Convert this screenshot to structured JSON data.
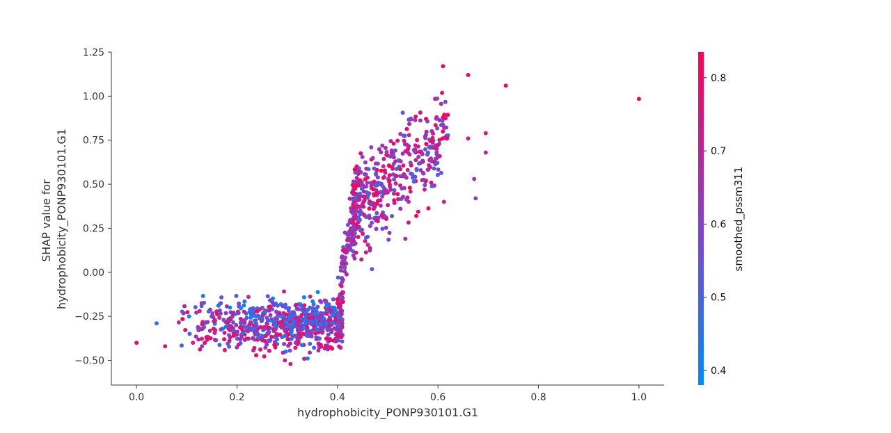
{
  "chart_data": {
    "type": "scatter",
    "title": "",
    "xlabel": "hydrophobicity_PONP930101.G1",
    "ylabel_lines": [
      "SHAP value for",
      "hydrophobicity_PONP930101.G1"
    ],
    "xlim": [
      -0.05,
      1.05
    ],
    "ylim": [
      -0.64,
      1.25
    ],
    "x_ticks": [
      0.0,
      0.2,
      0.4,
      0.6,
      0.8,
      1.0
    ],
    "x_tick_labels": [
      "0.0",
      "0.2",
      "0.4",
      "0.6",
      "0.8",
      "1.0"
    ],
    "y_ticks": [
      -0.5,
      -0.25,
      0.0,
      0.25,
      0.5,
      0.75,
      1.0,
      1.25
    ],
    "y_tick_labels": [
      "−0.50",
      "−0.25",
      "0.00",
      "0.25",
      "0.50",
      "0.75",
      "1.00",
      "1.25"
    ],
    "grid": false,
    "colorbar": {
      "label": "smoothed_pssm311",
      "range": [
        0.38,
        0.835
      ],
      "ticks": [
        0.4,
        0.5,
        0.6,
        0.7,
        0.8
      ],
      "tick_labels": [
        "0.4",
        "0.5",
        "0.6",
        "0.7",
        "0.8"
      ],
      "color_low": "#008afb",
      "color_high": "#ff0052"
    },
    "clusters": [
      {
        "x_range": [
          0.08,
          0.41
        ],
        "y_mean": -0.3,
        "y_spread": 0.08,
        "count": 700
      },
      {
        "x_range": [
          0.4,
          0.44
        ],
        "y_mean": 0.05,
        "y_spread": 0.3,
        "count": 120
      },
      {
        "x_range": [
          0.43,
          0.62
        ],
        "y_mean": 0.65,
        "y_spread": 0.17,
        "count": 420
      }
    ],
    "outliers": [
      {
        "x": 0.0,
        "y": -0.4,
        "c": 0.8
      },
      {
        "x": 0.04,
        "y": -0.29,
        "c": 0.45
      },
      {
        "x": 0.057,
        "y": -0.42,
        "c": 0.75
      },
      {
        "x": 0.61,
        "y": 1.17,
        "c": 0.8
      },
      {
        "x": 0.66,
        "y": 1.12,
        "c": 0.78
      },
      {
        "x": 0.735,
        "y": 1.06,
        "c": 0.8
      },
      {
        "x": 1.0,
        "y": 0.985,
        "c": 0.82
      },
      {
        "x": 0.695,
        "y": 0.79,
        "c": 0.72
      },
      {
        "x": 0.675,
        "y": 0.42,
        "c": 0.6
      },
      {
        "x": 0.672,
        "y": 0.53,
        "c": 0.65
      },
      {
        "x": 0.695,
        "y": 0.68,
        "c": 0.7
      },
      {
        "x": 0.535,
        "y": 0.19,
        "c": 0.65
      },
      {
        "x": 0.66,
        "y": 0.76,
        "c": 0.7
      },
      {
        "x": 0.612,
        "y": 0.4,
        "c": 0.7
      }
    ]
  }
}
